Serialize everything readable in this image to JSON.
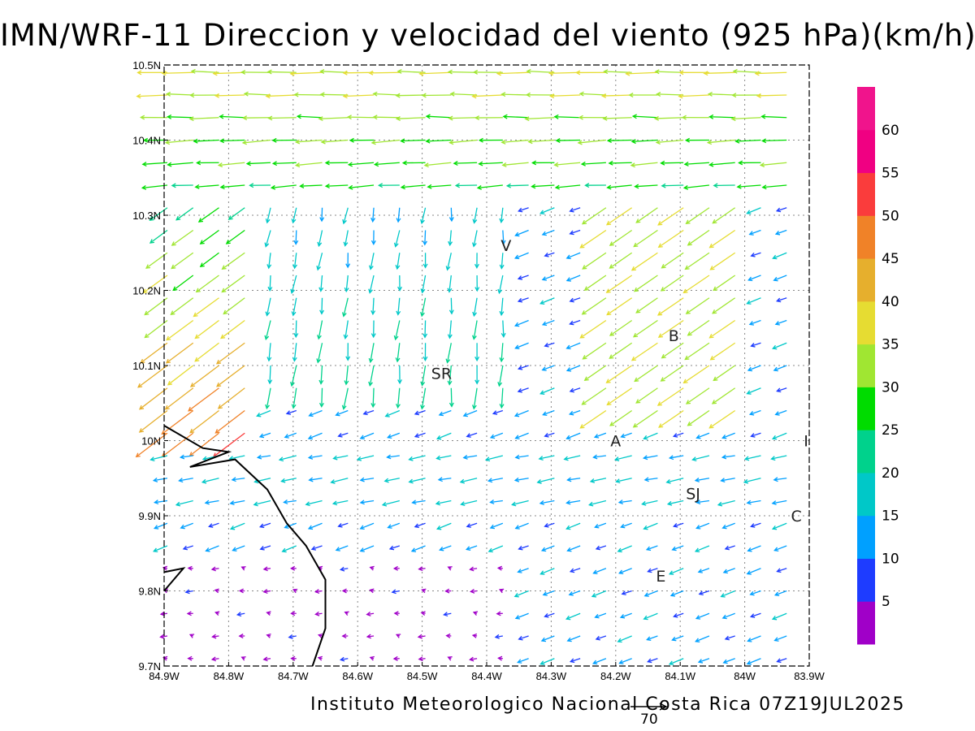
{
  "title": "IMN/WRF-11 Direccion y velocidad del viento (925 hPa)(km/h)",
  "credit": "Instituto Meteorologico Nacional Costa Rica 07Z19JUL2025",
  "reference_vector_label": "70",
  "map": {
    "lon_range": [
      -84.9,
      -83.9
    ],
    "lat_range": [
      9.7,
      10.5
    ],
    "x_tick_labels": [
      "84.9W",
      "84.8W",
      "84.7W",
      "84.6W",
      "84.5W",
      "84.4W",
      "84.3W",
      "84.2W",
      "84.1W",
      "84W",
      "83.9W"
    ],
    "y_tick_labels": [
      "9.7N",
      "9.8N",
      "9.9N",
      "10N",
      "10.1N",
      "10.2N",
      "10.3N",
      "10.4N",
      "10.5N"
    ],
    "grid": "dotted",
    "station_labels": [
      {
        "label": "V",
        "lon": -84.37,
        "lat": 10.26
      },
      {
        "label": "B",
        "lon": -84.11,
        "lat": 10.14
      },
      {
        "label": "SR",
        "lon": -84.47,
        "lat": 10.09
      },
      {
        "label": "A",
        "lon": -84.2,
        "lat": 10.0
      },
      {
        "label": "SJ",
        "lon": -84.08,
        "lat": 9.93
      },
      {
        "label": "C",
        "lon": -83.92,
        "lat": 9.9
      },
      {
        "label": "E",
        "lon": -84.13,
        "lat": 9.82
      },
      {
        "label": "I",
        "lon": -83.905,
        "lat": 10.0
      }
    ],
    "coastline": [
      [
        -84.9,
        10.02
      ],
      [
        -84.84,
        9.99
      ],
      [
        -84.8,
        9.985
      ],
      [
        -84.86,
        9.965
      ],
      [
        -84.79,
        9.975
      ],
      [
        -84.74,
        9.935
      ],
      [
        -84.71,
        9.89
      ],
      [
        -84.68,
        9.86
      ],
      [
        -84.65,
        9.815
      ],
      [
        -84.65,
        9.75
      ],
      [
        -84.67,
        9.7
      ]
    ],
    "coastline_spur": [
      [
        -84.9,
        9.8
      ],
      [
        -84.87,
        9.83
      ],
      [
        -84.9,
        9.825
      ]
    ]
  },
  "colorbar": {
    "tick_labels": [
      "5",
      "10",
      "15",
      "20",
      "25",
      "30",
      "35",
      "40",
      "45",
      "50",
      "55",
      "60"
    ],
    "colors": [
      "#a000c8",
      "#1e3cff",
      "#00a0ff",
      "#00c8c8",
      "#00d28c",
      "#00dc00",
      "#a0e632",
      "#e6dc32",
      "#e6af2d",
      "#f08228",
      "#fa3c3c",
      "#f00082"
    ]
  },
  "wind_description": "Gridded wind vectors at 925 hPa; strong easterly flow (25-40 km/h) across the north, NE 40-60 km/h jets in the northwest, weak (<15 km/h) winds in the south-west."
}
